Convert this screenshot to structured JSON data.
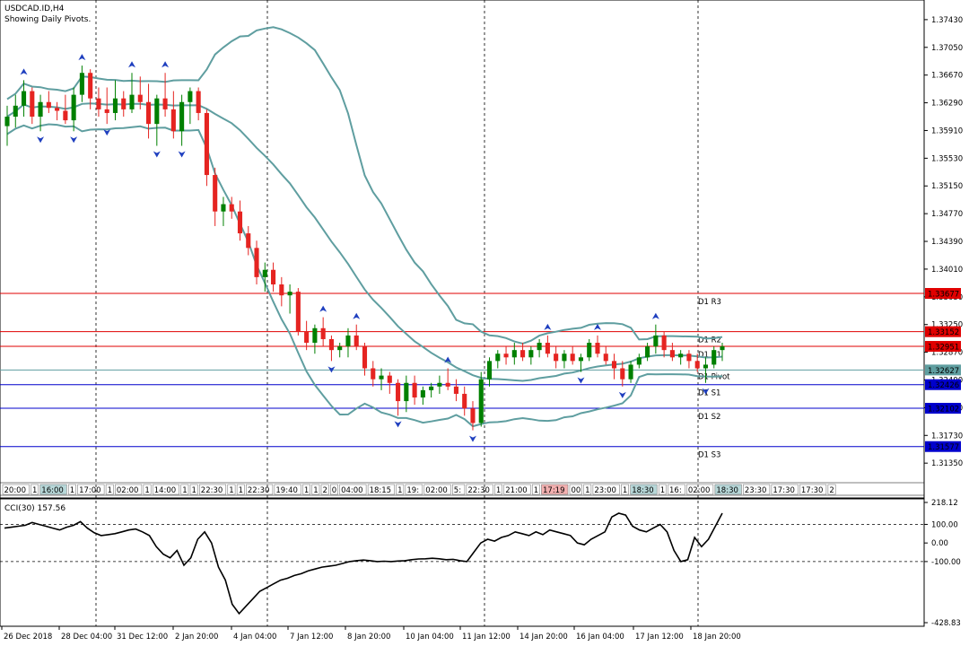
{
  "header": {
    "symbol": "USDCAD.ID,H4",
    "indicator_note": "Showing Daily Pivots."
  },
  "colors": {
    "bull": "#008000",
    "bear": "#e52421",
    "bands": "#5f9ea0",
    "resistance": "#e00000",
    "support": "#0000cc",
    "pivot": "#5f9ea0",
    "fractal": "#1f3fbf"
  },
  "chart_data": [
    {
      "type": "candlestick",
      "title": "USDCAD.ID,H4",
      "ylim": [
        1.3118,
        1.3765
      ],
      "y_ticks": [
        "1.37430",
        "1.37050",
        "1.36670",
        "1.36290",
        "1.35910",
        "1.35530",
        "1.35150",
        "1.34770",
        "1.34390",
        "1.34010",
        "1.33630",
        "1.33250",
        "1.32870",
        "1.32490",
        "1.32110",
        "1.31730",
        "1.31350"
      ],
      "overlays": {
        "bollinger": "shown",
        "fractals": "shown"
      },
      "ohlc": [
        [
          1.3597,
          1.3625,
          1.357,
          1.361
        ],
        [
          1.361,
          1.364,
          1.3595,
          1.3625
        ],
        [
          1.3625,
          1.366,
          1.361,
          1.3645
        ],
        [
          1.3645,
          1.365,
          1.36,
          1.361
        ],
        [
          1.361,
          1.364,
          1.359,
          1.363
        ],
        [
          1.363,
          1.3645,
          1.3615,
          1.3622
        ],
        [
          1.3622,
          1.363,
          1.3605,
          1.3618
        ],
        [
          1.3618,
          1.364,
          1.36,
          1.3605
        ],
        [
          1.3605,
          1.365,
          1.359,
          1.364
        ],
        [
          1.364,
          1.368,
          1.363,
          1.367
        ],
        [
          1.367,
          1.3675,
          1.362,
          1.3635
        ],
        [
          1.3635,
          1.365,
          1.361,
          1.362
        ],
        [
          1.362,
          1.365,
          1.36,
          1.3615
        ],
        [
          1.3615,
          1.366,
          1.3605,
          1.3635
        ],
        [
          1.3635,
          1.3645,
          1.361,
          1.362
        ],
        [
          1.362,
          1.367,
          1.3615,
          1.364
        ],
        [
          1.364,
          1.3665,
          1.362,
          1.363
        ],
        [
          1.363,
          1.3655,
          1.358,
          1.36
        ],
        [
          1.36,
          1.364,
          1.357,
          1.3635
        ],
        [
          1.3635,
          1.367,
          1.361,
          1.362
        ],
        [
          1.362,
          1.3645,
          1.358,
          1.359
        ],
        [
          1.359,
          1.364,
          1.357,
          1.363
        ],
        [
          1.363,
          1.365,
          1.36,
          1.3645
        ],
        [
          1.3645,
          1.365,
          1.3605,
          1.3615
        ],
        [
          1.3615,
          1.362,
          1.3515,
          1.353
        ],
        [
          1.353,
          1.354,
          1.346,
          1.348
        ],
        [
          1.348,
          1.35,
          1.346,
          1.349
        ],
        [
          1.349,
          1.35,
          1.347,
          1.348
        ],
        [
          1.348,
          1.3495,
          1.344,
          1.345
        ],
        [
          1.345,
          1.346,
          1.342,
          1.343
        ],
        [
          1.343,
          1.344,
          1.338,
          1.339
        ],
        [
          1.339,
          1.341,
          1.337,
          1.34
        ],
        [
          1.34,
          1.341,
          1.337,
          1.338
        ],
        [
          1.338,
          1.339,
          1.335,
          1.3365
        ],
        [
          1.3365,
          1.338,
          1.334,
          1.337
        ],
        [
          1.337,
          1.3375,
          1.331,
          1.3315
        ],
        [
          1.3315,
          1.333,
          1.329,
          1.33
        ],
        [
          1.33,
          1.3325,
          1.3285,
          1.332
        ],
        [
          1.332,
          1.3335,
          1.3295,
          1.3305
        ],
        [
          1.3305,
          1.331,
          1.3275,
          1.329
        ],
        [
          1.329,
          1.33,
          1.328,
          1.3295
        ],
        [
          1.3295,
          1.332,
          1.328,
          1.331
        ],
        [
          1.331,
          1.3325,
          1.329,
          1.3295
        ],
        [
          1.3295,
          1.33,
          1.3255,
          1.3265
        ],
        [
          1.3265,
          1.3275,
          1.324,
          1.325
        ],
        [
          1.325,
          1.3265,
          1.3235,
          1.3255
        ],
        [
          1.3255,
          1.326,
          1.323,
          1.3245
        ],
        [
          1.3245,
          1.325,
          1.32,
          1.322
        ],
        [
          1.322,
          1.3255,
          1.3205,
          1.3245
        ],
        [
          1.3245,
          1.3255,
          1.3215,
          1.3225
        ],
        [
          1.3225,
          1.324,
          1.3215,
          1.3235
        ],
        [
          1.3235,
          1.3245,
          1.3225,
          1.324
        ],
        [
          1.324,
          1.3255,
          1.323,
          1.3245
        ],
        [
          1.3245,
          1.3265,
          1.3235,
          1.324
        ],
        [
          1.324,
          1.325,
          1.322,
          1.323
        ],
        [
          1.323,
          1.324,
          1.32,
          1.321
        ],
        [
          1.321,
          1.322,
          1.318,
          1.319
        ],
        [
          1.319,
          1.326,
          1.3185,
          1.325
        ],
        [
          1.325,
          1.328,
          1.324,
          1.3275
        ],
        [
          1.3275,
          1.329,
          1.3265,
          1.3285
        ],
        [
          1.3285,
          1.3295,
          1.327,
          1.328
        ],
        [
          1.328,
          1.33,
          1.327,
          1.329
        ],
        [
          1.329,
          1.33,
          1.3275,
          1.328
        ],
        [
          1.328,
          1.3295,
          1.327,
          1.329
        ],
        [
          1.329,
          1.3305,
          1.328,
          1.33
        ],
        [
          1.33,
          1.331,
          1.328,
          1.3285
        ],
        [
          1.3285,
          1.3295,
          1.3265,
          1.3275
        ],
        [
          1.3275,
          1.329,
          1.3265,
          1.3285
        ],
        [
          1.3285,
          1.3295,
          1.327,
          1.3275
        ],
        [
          1.3275,
          1.3285,
          1.326,
          1.328
        ],
        [
          1.328,
          1.3305,
          1.3275,
          1.33
        ],
        [
          1.33,
          1.331,
          1.328,
          1.3285
        ],
        [
          1.3285,
          1.3295,
          1.327,
          1.3275
        ],
        [
          1.3275,
          1.3285,
          1.325,
          1.3265
        ],
        [
          1.3265,
          1.3275,
          1.324,
          1.325
        ],
        [
          1.325,
          1.3275,
          1.3245,
          1.327
        ],
        [
          1.327,
          1.3285,
          1.3265,
          1.328
        ],
        [
          1.328,
          1.33,
          1.3275,
          1.3295
        ],
        [
          1.3295,
          1.3325,
          1.3285,
          1.331
        ],
        [
          1.331,
          1.3315,
          1.328,
          1.329
        ],
        [
          1.329,
          1.33,
          1.3275,
          1.328
        ],
        [
          1.328,
          1.329,
          1.327,
          1.3285
        ],
        [
          1.3285,
          1.329,
          1.3265,
          1.3275
        ],
        [
          1.3275,
          1.3285,
          1.326,
          1.3265
        ],
        [
          1.3265,
          1.328,
          1.3245,
          1.327
        ],
        [
          1.327,
          1.3295,
          1.3265,
          1.329
        ],
        [
          1.329,
          1.33,
          1.3275,
          1.3295
        ]
      ],
      "right_labels": [
        {
          "text": "1.33677",
          "kind": "resistance",
          "value": 1.33677
        },
        {
          "text": "1.33152",
          "kind": "resistance",
          "value": 1.33152
        },
        {
          "text": "1.32951",
          "kind": "resistance",
          "value": 1.32951
        },
        {
          "text": "1.32627",
          "kind": "pivot",
          "value": 1.32627
        },
        {
          "text": "1.32426",
          "kind": "support",
          "value": 1.32426
        },
        {
          "text": "1.32102",
          "kind": "support",
          "value": 1.32102
        },
        {
          "text": "1.31577",
          "kind": "support",
          "value": 1.31577
        }
      ],
      "pivot_labels": [
        {
          "text": "D1 R3",
          "value": 1.33677
        },
        {
          "text": "D1 R2",
          "value": 1.33152
        },
        {
          "text": "D1 R1",
          "value": 1.32951
        },
        {
          "text": "D1 Pivot",
          "value": 1.32627
        },
        {
          "text": "D1 S1",
          "value": 1.32426
        },
        {
          "text": "D1 S2",
          "value": 1.32102
        },
        {
          "text": "D1 S3",
          "value": 1.31577
        }
      ]
    },
    {
      "type": "line",
      "title": "CCI(30) 157.56",
      "ylim": [
        -428.83,
        218.12
      ],
      "y_ticks": [
        "218.12",
        "100.00",
        "0.00",
        "-100.00",
        "-428.83"
      ],
      "levels": [
        100,
        -100
      ],
      "values": [
        80,
        85,
        90,
        95,
        110,
        100,
        90,
        80,
        70,
        85,
        95,
        115,
        80,
        55,
        40,
        45,
        50,
        60,
        70,
        75,
        60,
        40,
        -20,
        -60,
        -80,
        -40,
        -120,
        -80,
        20,
        60,
        0,
        -130,
        -200,
        -330,
        -380,
        -340,
        -300,
        -260,
        -240,
        -220,
        -200,
        -190,
        -175,
        -165,
        -150,
        -140,
        -130,
        -125,
        -120,
        -110,
        -100,
        -95,
        -92,
        -95,
        -100,
        -98,
        -100,
        -97,
        -95,
        -90,
        -86,
        -85,
        -82,
        -85,
        -90,
        -88,
        -95,
        -100,
        -50,
        0,
        20,
        10,
        30,
        40,
        60,
        50,
        40,
        60,
        45,
        70,
        60,
        50,
        40,
        0,
        -10,
        20,
        40,
        60,
        140,
        160,
        150,
        90,
        70,
        60,
        80,
        100,
        60,
        -40,
        -100,
        -90,
        30,
        -20,
        20,
        90,
        160
      ]
    }
  ],
  "xaxis_time_labels": [
    "26 Dec 2018",
    "28 Dec 04:00",
    "31 Dec 12:00",
    "2 Jan 20:00",
    "4 Jan 04:00",
    "7 Jan 12:00",
    "8 Jan 20:00",
    "10 Jan 04:00",
    "11 Jan 12:00",
    "14 Jan 20:00",
    "16 Jan 04:00",
    "17 Jan 12:00",
    "18 Jan 20:00"
  ],
  "session_strip": [
    "20:00",
    "1",
    "16:00",
    "1",
    "17:00",
    "1",
    "02:00",
    "1",
    "14:00",
    "1",
    "1",
    "22:30",
    "1",
    "1",
    "22:30",
    "19:40",
    "1",
    "1",
    "2",
    "0",
    "04:00",
    "18:15",
    "1",
    "19:",
    "02:00",
    "5:",
    "22:30",
    "1",
    "21:00",
    "1",
    "17:19",
    "00",
    "1",
    "23:00",
    "1",
    "18:30",
    "1",
    "16:",
    "02:00",
    "18:30",
    "23:30",
    "17:30",
    "17:30",
    "2"
  ]
}
